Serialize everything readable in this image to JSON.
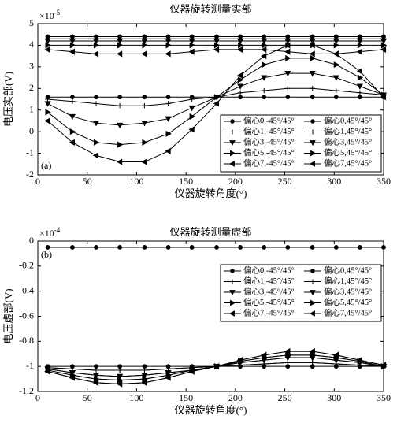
{
  "chart_data": [
    {
      "type": "line",
      "title": "仪器旋转测量实部",
      "x_label": "仪器旋转角度(°)",
      "y_label": "电压实部(V)",
      "scale_label": "×10",
      "scale_exponent": "-5",
      "annotation": "(a)",
      "legend": "lower right",
      "xlim": [
        0,
        350
      ],
      "xticks": [
        0,
        50,
        100,
        150,
        200,
        250,
        300,
        350
      ],
      "ylim": [
        -2,
        5
      ],
      "yticks": [
        -2,
        -1,
        0,
        1,
        2,
        3,
        4,
        5
      ],
      "x": [
        10,
        35,
        59,
        83,
        108,
        132,
        156,
        181,
        205,
        229,
        253,
        278,
        302,
        326,
        350
      ],
      "series": [
        {
          "name": "偏心0,-45°/45°",
          "color": "#000000",
          "marker": "o",
          "values": [
            1.6,
            1.6,
            1.6,
            1.6,
            1.6,
            1.6,
            1.6,
            1.6,
            1.6,
            1.6,
            1.6,
            1.6,
            1.6,
            1.6,
            1.6
          ]
        },
        {
          "name": "偏心0,45°/45°",
          "color": "#000000",
          "marker": "o",
          "values": [
            4.4,
            4.4,
            4.4,
            4.4,
            4.4,
            4.4,
            4.4,
            4.4,
            4.4,
            4.4,
            4.4,
            4.4,
            4.4,
            4.4,
            4.4
          ]
        },
        {
          "name": "偏心1,-45°/45°",
          "color": "#000000",
          "marker": "+",
          "values": [
            1.5,
            1.4,
            1.3,
            1.2,
            1.2,
            1.3,
            1.5,
            1.6,
            1.8,
            1.9,
            2.0,
            2.0,
            1.9,
            1.8,
            1.7
          ]
        },
        {
          "name": "偏心1,45°/45°",
          "color": "#000000",
          "marker": "+",
          "values": [
            4.3,
            4.3,
            4.3,
            4.3,
            4.3,
            4.3,
            4.3,
            4.3,
            4.3,
            4.3,
            4.3,
            4.3,
            4.3,
            4.3,
            4.3
          ]
        },
        {
          "name": "偏心3,-45°/45°",
          "color": "#000000",
          "marker": "v",
          "values": [
            1.3,
            0.7,
            0.4,
            0.3,
            0.4,
            0.6,
            1.1,
            1.6,
            2.1,
            2.5,
            2.7,
            2.7,
            2.5,
            2.1,
            1.7
          ]
        },
        {
          "name": "偏心3,45°/45°",
          "color": "#000000",
          "marker": "v",
          "values": [
            4.2,
            4.2,
            4.2,
            4.2,
            4.2,
            4.2,
            4.2,
            4.2,
            4.2,
            4.2,
            4.2,
            4.2,
            4.2,
            4.2,
            4.2
          ]
        },
        {
          "name": "偏心5,-45°/45°",
          "color": "#000000",
          "marker": ">",
          "values": [
            0.9,
            0.0,
            -0.5,
            -0.6,
            -0.5,
            -0.1,
            0.7,
            1.6,
            2.4,
            3.1,
            3.4,
            3.4,
            3.1,
            2.5,
            1.7
          ]
        },
        {
          "name": "偏心5,45°/45°",
          "color": "#000000",
          "marker": ">",
          "values": [
            4.0,
            4.0,
            4.0,
            4.0,
            4.0,
            4.0,
            4.0,
            4.0,
            4.0,
            4.0,
            4.0,
            4.0,
            4.0,
            4.0,
            4.0
          ]
        },
        {
          "name": "偏心7,-45°/45°",
          "color": "#000000",
          "marker": "<",
          "values": [
            0.5,
            -0.5,
            -1.1,
            -1.4,
            -1.4,
            -0.9,
            0.1,
            1.3,
            2.6,
            3.5,
            4.0,
            4.0,
            3.6,
            2.8,
            1.6
          ]
        },
        {
          "name": "偏心7,45°/45°",
          "color": "#000000",
          "marker": "<",
          "values": [
            3.8,
            3.7,
            3.6,
            3.6,
            3.6,
            3.6,
            3.7,
            3.8,
            3.8,
            3.8,
            3.7,
            3.6,
            3.6,
            3.7,
            3.8
          ]
        }
      ]
    },
    {
      "type": "line",
      "title": "仪器旋转测量虚部",
      "x_label": "仪器旋转角度(°)",
      "y_label": "电压虚部(V)",
      "scale_label": "×10",
      "scale_exponent": "-4",
      "annotation": "(b)",
      "legend": "upper right",
      "xlim": [
        0,
        350
      ],
      "xticks": [
        0,
        50,
        100,
        150,
        200,
        250,
        300,
        350
      ],
      "ylim": [
        -1.2,
        0
      ],
      "yticks": [
        -1.2,
        -1,
        -0.8,
        -0.6,
        -0.4,
        -0.2,
        0
      ],
      "x": [
        10,
        35,
        59,
        83,
        108,
        132,
        156,
        181,
        205,
        229,
        253,
        278,
        302,
        326,
        350
      ],
      "series": [
        {
          "name": "偏心0,-45°/45°",
          "color": "#000000",
          "marker": "o",
          "values": [
            -1.0,
            -1.0,
            -1.0,
            -1.0,
            -1.0,
            -1.0,
            -1.0,
            -1.0,
            -1.0,
            -1.0,
            -1.0,
            -1.0,
            -1.0,
            -1.0,
            -1.0
          ]
        },
        {
          "name": "偏心0,45°/45°",
          "color": "#000000",
          "marker": "o",
          "values": [
            -0.05,
            -0.05,
            -0.05,
            -0.05,
            -0.05,
            -0.05,
            -0.05,
            -0.05,
            -0.05,
            -0.05,
            -0.05,
            -0.05,
            -0.05,
            -0.05,
            -0.05
          ]
        },
        {
          "name": "偏心1,-45°/45°",
          "color": "#000000",
          "marker": "+",
          "values": [
            -1.01,
            -1.02,
            -1.03,
            -1.03,
            -1.03,
            -1.02,
            -1.01,
            -1.0,
            -0.99,
            -0.98,
            -0.97,
            -0.97,
            -0.98,
            -0.99,
            -1.0
          ]
        },
        {
          "name": "偏心1,45°/45°",
          "color": "#000000",
          "marker": "+",
          "values": [
            -1.01,
            -1.02,
            -1.03,
            -1.03,
            -1.03,
            -1.02,
            -1.01,
            -1.0,
            -0.99,
            -0.98,
            -0.97,
            -0.97,
            -0.98,
            -0.99,
            -1.0
          ]
        },
        {
          "name": "偏心3,-45°/45°",
          "color": "#000000",
          "marker": "v",
          "values": [
            -1.02,
            -1.05,
            -1.07,
            -1.08,
            -1.07,
            -1.05,
            -1.03,
            -1.0,
            -0.97,
            -0.95,
            -0.93,
            -0.93,
            -0.95,
            -0.97,
            -1.0
          ]
        },
        {
          "name": "偏心3,45°/45°",
          "color": "#000000",
          "marker": "v",
          "values": [
            -1.02,
            -1.05,
            -1.07,
            -1.08,
            -1.07,
            -1.05,
            -1.03,
            -1.0,
            -0.97,
            -0.95,
            -0.93,
            -0.93,
            -0.95,
            -0.97,
            -1.0
          ]
        },
        {
          "name": "偏心5,-45°/45°",
          "color": "#000000",
          "marker": ">",
          "values": [
            -1.03,
            -1.07,
            -1.1,
            -1.11,
            -1.1,
            -1.07,
            -1.03,
            -1.0,
            -0.96,
            -0.93,
            -0.91,
            -0.91,
            -0.93,
            -0.96,
            -1.0
          ]
        },
        {
          "name": "偏心5,45°/45°",
          "color": "#000000",
          "marker": ">",
          "values": [
            -1.03,
            -1.07,
            -1.1,
            -1.11,
            -1.1,
            -1.07,
            -1.03,
            -1.0,
            -0.96,
            -0.93,
            -0.91,
            -0.91,
            -0.93,
            -0.96,
            -1.0
          ]
        },
        {
          "name": "偏心7,-45°/45°",
          "color": "#000000",
          "marker": "<",
          "values": [
            -1.04,
            -1.09,
            -1.13,
            -1.14,
            -1.13,
            -1.09,
            -1.04,
            -1.0,
            -0.95,
            -0.91,
            -0.88,
            -0.88,
            -0.91,
            -0.95,
            -0.99
          ]
        },
        {
          "name": "偏心7,45°/45°",
          "color": "#000000",
          "marker": "<",
          "values": [
            -1.04,
            -1.09,
            -1.13,
            -1.14,
            -1.13,
            -1.09,
            -1.04,
            -1.0,
            -0.95,
            -0.91,
            -0.88,
            -0.88,
            -0.91,
            -0.95,
            -0.99
          ]
        }
      ]
    }
  ]
}
